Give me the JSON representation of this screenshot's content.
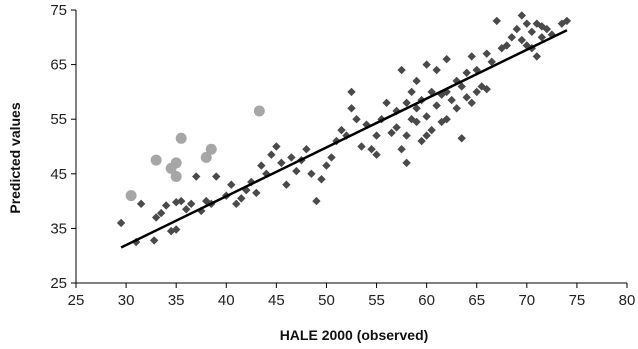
{
  "chart_data": {
    "type": "scatter",
    "title": "",
    "xlabel": "HALE 2000 (observed)",
    "ylabel": "Predicted values",
    "xlim": [
      25,
      80
    ],
    "ylim": [
      25,
      75
    ],
    "xticks": [
      25,
      30,
      35,
      40,
      45,
      50,
      55,
      60,
      65,
      70,
      75,
      80
    ],
    "yticks": [
      25,
      35,
      45,
      55,
      65,
      75
    ],
    "grid": false,
    "legend": "none",
    "series": [
      {
        "marker": "diamond",
        "color": "#4a4a4a",
        "points": [
          [
            29.5,
            36.0
          ],
          [
            31.0,
            32.5
          ],
          [
            31.5,
            39.5
          ],
          [
            32.8,
            32.8
          ],
          [
            33.0,
            37.0
          ],
          [
            33.5,
            37.8
          ],
          [
            34.0,
            39.2
          ],
          [
            34.5,
            34.5
          ],
          [
            35.0,
            34.8
          ],
          [
            35.0,
            39.8
          ],
          [
            35.5,
            40.0
          ],
          [
            36.0,
            38.5
          ],
          [
            36.5,
            39.5
          ],
          [
            37.0,
            44.5
          ],
          [
            37.5,
            38.2
          ],
          [
            38.0,
            40.0
          ],
          [
            38.5,
            39.5
          ],
          [
            39.0,
            44.5
          ],
          [
            40.0,
            41.0
          ],
          [
            40.5,
            43.0
          ],
          [
            41.0,
            39.5
          ],
          [
            41.5,
            40.5
          ],
          [
            42.0,
            42.0
          ],
          [
            42.5,
            43.5
          ],
          [
            43.0,
            41.5
          ],
          [
            43.5,
            46.5
          ],
          [
            44.0,
            45.0
          ],
          [
            44.5,
            48.5
          ],
          [
            45.0,
            50.0
          ],
          [
            45.5,
            47.0
          ],
          [
            46.0,
            43.0
          ],
          [
            46.5,
            48.0
          ],
          [
            47.0,
            45.5
          ],
          [
            47.5,
            47.5
          ],
          [
            48.0,
            49.5
          ],
          [
            48.5,
            45.0
          ],
          [
            49.0,
            40.0
          ],
          [
            49.5,
            44.0
          ],
          [
            50.0,
            46.5
          ],
          [
            50.5,
            48.0
          ],
          [
            51.0,
            51.0
          ],
          [
            51.5,
            53.0
          ],
          [
            52.0,
            52.0
          ],
          [
            52.5,
            57.0
          ],
          [
            52.5,
            60.0
          ],
          [
            53.0,
            55.0
          ],
          [
            53.5,
            50.0
          ],
          [
            54.0,
            54.0
          ],
          [
            54.5,
            49.5
          ],
          [
            55.0,
            48.5
          ],
          [
            55.0,
            52.0
          ],
          [
            55.5,
            55.0
          ],
          [
            56.0,
            58.0
          ],
          [
            56.5,
            52.5
          ],
          [
            57.0,
            53.5
          ],
          [
            57.0,
            56.5
          ],
          [
            57.5,
            49.5
          ],
          [
            57.5,
            64.0
          ],
          [
            58.0,
            58.0
          ],
          [
            58.0,
            47.0
          ],
          [
            58.0,
            52.0
          ],
          [
            58.5,
            55.0
          ],
          [
            58.5,
            60.0
          ],
          [
            59.0,
            54.5
          ],
          [
            59.0,
            57.0
          ],
          [
            59.0,
            62.0
          ],
          [
            59.5,
            51.0
          ],
          [
            59.5,
            58.5
          ],
          [
            60.0,
            52.0
          ],
          [
            60.0,
            55.5
          ],
          [
            60.0,
            65.0
          ],
          [
            60.5,
            53.0
          ],
          [
            60.5,
            60.0
          ],
          [
            61.0,
            57.5
          ],
          [
            61.0,
            64.0
          ],
          [
            61.5,
            54.5
          ],
          [
            61.5,
            59.5
          ],
          [
            62.0,
            55.0
          ],
          [
            62.0,
            60.0
          ],
          [
            62.0,
            66.0
          ],
          [
            62.5,
            58.5
          ],
          [
            63.0,
            57.0
          ],
          [
            63.0,
            62.0
          ],
          [
            63.5,
            51.5
          ],
          [
            63.5,
            61.0
          ],
          [
            64.0,
            59.0
          ],
          [
            64.0,
            63.5
          ],
          [
            64.5,
            58.0
          ],
          [
            64.5,
            66.5
          ],
          [
            65.0,
            60.0
          ],
          [
            65.0,
            64.0
          ],
          [
            65.5,
            61.0
          ],
          [
            66.0,
            60.5
          ],
          [
            66.0,
            67.0
          ],
          [
            66.5,
            65.5
          ],
          [
            67.0,
            73.0
          ],
          [
            67.5,
            68.0
          ],
          [
            68.0,
            68.5
          ],
          [
            68.5,
            70.0
          ],
          [
            69.0,
            71.5
          ],
          [
            69.5,
            74.0
          ],
          [
            69.5,
            69.5
          ],
          [
            70.0,
            72.5
          ],
          [
            70.0,
            68.5
          ],
          [
            70.5,
            71.0
          ],
          [
            70.5,
            68.0
          ],
          [
            71.0,
            72.5
          ],
          [
            71.0,
            66.5
          ],
          [
            71.5,
            70.0
          ],
          [
            71.5,
            72.0
          ],
          [
            72.0,
            71.5
          ],
          [
            72.5,
            70.5
          ],
          [
            73.5,
            72.5
          ],
          [
            74.0,
            73.0
          ]
        ]
      },
      {
        "marker": "circle",
        "color": "#a6a6a6",
        "points": [
          [
            30.5,
            41.0
          ],
          [
            33.0,
            47.5
          ],
          [
            34.5,
            46.0
          ],
          [
            35.0,
            47.0
          ],
          [
            35.0,
            44.5
          ],
          [
            35.5,
            51.5
          ],
          [
            38.0,
            48.0
          ],
          [
            38.5,
            49.5
          ],
          [
            43.3,
            56.5
          ]
        ]
      }
    ],
    "trendline": {
      "type": "linear",
      "color": "#000000",
      "x": [
        29.5,
        74.0
      ],
      "y": [
        31.5,
        71.3
      ]
    }
  }
}
